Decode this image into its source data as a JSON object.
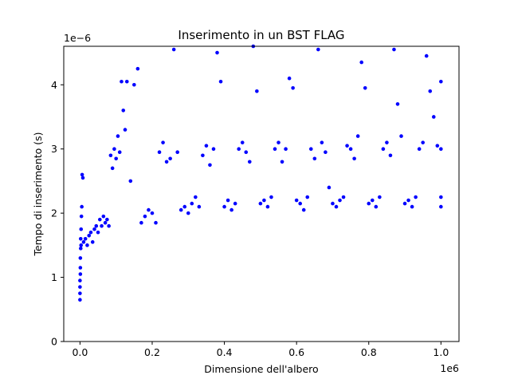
{
  "chart_data": {
    "type": "scatter",
    "title": "Inserimento in un BST FLAG",
    "xlabel": "Dimensione dell'albero",
    "ylabel": "Tempo di inserimento (s)",
    "x_offset_label": "1e6",
    "y_offset_label": "1e−6",
    "xlim": [
      -45000,
      1050000
    ],
    "ylim": [
      0,
      4.6
    ],
    "x_ticks": [
      0,
      0.2,
      0.4,
      0.6,
      0.8,
      1.0
    ],
    "x_tick_labels": [
      "0.0",
      "0.2",
      "0.4",
      "0.6",
      "0.8",
      "1.0"
    ],
    "y_ticks": [
      0,
      1,
      2,
      3,
      4
    ],
    "y_tick_labels": [
      "0",
      "1",
      "2",
      "3",
      "4"
    ],
    "grid": false,
    "series": [
      {
        "color": "#0000ff",
        "marker": "circle",
        "x_unit": "1e6",
        "y_unit": "1e-6 s",
        "points": [
          [
            0.0,
            0.65
          ],
          [
            0.0,
            0.75
          ],
          [
            0.0,
            0.85
          ],
          [
            0.0,
            0.95
          ],
          [
            0.001,
            1.05
          ],
          [
            0.001,
            1.15
          ],
          [
            0.001,
            1.3
          ],
          [
            0.002,
            1.45
          ],
          [
            0.002,
            1.6
          ],
          [
            0.003,
            1.75
          ],
          [
            0.003,
            1.5
          ],
          [
            0.004,
            1.95
          ],
          [
            0.005,
            2.1
          ],
          [
            0.006,
            2.6
          ],
          [
            0.008,
            2.55
          ],
          [
            0.01,
            1.55
          ],
          [
            0.015,
            1.6
          ],
          [
            0.02,
            1.5
          ],
          [
            0.025,
            1.65
          ],
          [
            0.03,
            1.7
          ],
          [
            0.035,
            1.55
          ],
          [
            0.04,
            1.75
          ],
          [
            0.045,
            1.8
          ],
          [
            0.05,
            1.7
          ],
          [
            0.055,
            1.9
          ],
          [
            0.06,
            1.8
          ],
          [
            0.065,
            1.95
          ],
          [
            0.07,
            1.85
          ],
          [
            0.075,
            1.9
          ],
          [
            0.08,
            1.8
          ],
          [
            0.085,
            2.9
          ],
          [
            0.09,
            2.7
          ],
          [
            0.095,
            3.0
          ],
          [
            0.1,
            2.85
          ],
          [
            0.105,
            3.2
          ],
          [
            0.11,
            2.95
          ],
          [
            0.115,
            4.05
          ],
          [
            0.12,
            3.6
          ],
          [
            0.125,
            3.3
          ],
          [
            0.13,
            4.05
          ],
          [
            0.14,
            2.5
          ],
          [
            0.15,
            4.0
          ],
          [
            0.16,
            4.25
          ],
          [
            0.17,
            1.85
          ],
          [
            0.18,
            1.95
          ],
          [
            0.19,
            2.05
          ],
          [
            0.2,
            2.0
          ],
          [
            0.21,
            1.85
          ],
          [
            0.22,
            2.95
          ],
          [
            0.23,
            3.1
          ],
          [
            0.24,
            2.8
          ],
          [
            0.25,
            2.85
          ],
          [
            0.26,
            4.55
          ],
          [
            0.27,
            2.95
          ],
          [
            0.28,
            2.05
          ],
          [
            0.29,
            2.1
          ],
          [
            0.3,
            2.0
          ],
          [
            0.31,
            2.15
          ],
          [
            0.32,
            2.25
          ],
          [
            0.33,
            2.1
          ],
          [
            0.34,
            2.9
          ],
          [
            0.35,
            3.05
          ],
          [
            0.36,
            2.75
          ],
          [
            0.37,
            3.0
          ],
          [
            0.38,
            4.5
          ],
          [
            0.39,
            4.05
          ],
          [
            0.4,
            2.1
          ],
          [
            0.41,
            2.2
          ],
          [
            0.42,
            2.05
          ],
          [
            0.43,
            2.15
          ],
          [
            0.44,
            3.0
          ],
          [
            0.45,
            3.1
          ],
          [
            0.46,
            2.95
          ],
          [
            0.47,
            2.8
          ],
          [
            0.48,
            4.6
          ],
          [
            0.49,
            3.9
          ],
          [
            0.5,
            2.15
          ],
          [
            0.51,
            2.2
          ],
          [
            0.52,
            2.1
          ],
          [
            0.53,
            2.25
          ],
          [
            0.54,
            3.0
          ],
          [
            0.55,
            3.1
          ],
          [
            0.56,
            2.8
          ],
          [
            0.57,
            3.0
          ],
          [
            0.58,
            4.1
          ],
          [
            0.59,
            3.95
          ],
          [
            0.6,
            2.2
          ],
          [
            0.61,
            2.15
          ],
          [
            0.62,
            2.05
          ],
          [
            0.63,
            2.25
          ],
          [
            0.64,
            3.0
          ],
          [
            0.65,
            2.85
          ],
          [
            0.66,
            4.55
          ],
          [
            0.67,
            3.1
          ],
          [
            0.68,
            2.95
          ],
          [
            0.69,
            2.4
          ],
          [
            0.7,
            2.15
          ],
          [
            0.71,
            2.1
          ],
          [
            0.72,
            2.2
          ],
          [
            0.73,
            2.25
          ],
          [
            0.74,
            3.05
          ],
          [
            0.75,
            3.0
          ],
          [
            0.76,
            2.85
          ],
          [
            0.77,
            3.2
          ],
          [
            0.78,
            4.35
          ],
          [
            0.79,
            3.95
          ],
          [
            0.8,
            2.15
          ],
          [
            0.81,
            2.2
          ],
          [
            0.82,
            2.1
          ],
          [
            0.83,
            2.25
          ],
          [
            0.84,
            3.0
          ],
          [
            0.85,
            3.1
          ],
          [
            0.86,
            2.9
          ],
          [
            0.87,
            4.55
          ],
          [
            0.88,
            3.7
          ],
          [
            0.89,
            3.2
          ],
          [
            0.9,
            2.15
          ],
          [
            0.91,
            2.2
          ],
          [
            0.92,
            2.1
          ],
          [
            0.93,
            2.25
          ],
          [
            0.94,
            3.0
          ],
          [
            0.95,
            3.1
          ],
          [
            0.96,
            4.45
          ],
          [
            0.97,
            3.9
          ],
          [
            0.98,
            3.5
          ],
          [
            0.99,
            3.05
          ],
          [
            1.0,
            2.1
          ],
          [
            1.0,
            2.25
          ],
          [
            1.0,
            3.0
          ],
          [
            1.0,
            4.05
          ]
        ]
      }
    ]
  }
}
